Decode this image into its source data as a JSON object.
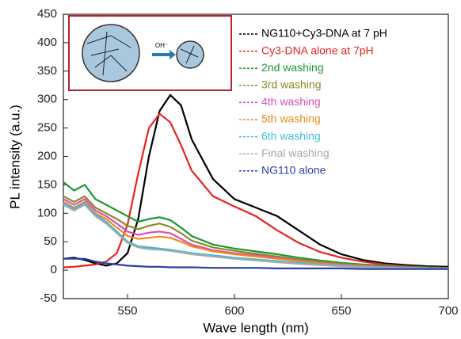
{
  "chart_data": {
    "type": "line",
    "xlabel": "Wave length (nm)",
    "ylabel": "PL intensity (a.u.)",
    "inset_label": "OH⁻",
    "xlim": [
      520,
      700
    ],
    "xticks": [
      550,
      600,
      650,
      700
    ],
    "ylim": [
      -50,
      450
    ],
    "yticks": [
      -50,
      0,
      50,
      100,
      150,
      200,
      250,
      300,
      350,
      400,
      450
    ],
    "x": [
      520,
      525,
      530,
      535,
      540,
      545,
      550,
      555,
      560,
      565,
      570,
      575,
      580,
      590,
      600,
      610,
      620,
      630,
      640,
      650,
      660,
      670,
      680,
      690,
      700
    ],
    "series": [
      {
        "name": "NG110+Cy3-DNA at 7 pH",
        "color": "#000000",
        "values": [
          20,
          22,
          18,
          12,
          8,
          12,
          30,
          90,
          200,
          280,
          308,
          290,
          230,
          160,
          125,
          110,
          95,
          70,
          45,
          28,
          18,
          12,
          9,
          7,
          6
        ]
      },
      {
        "name": "Cy3-DNA alone at 7pH",
        "color": "#e8231f",
        "values": [
          5,
          6,
          8,
          10,
          15,
          30,
          80,
          170,
          250,
          275,
          260,
          220,
          175,
          130,
          112,
          95,
          70,
          48,
          32,
          22,
          15,
          10,
          7,
          5,
          4
        ]
      },
      {
        "name": "2nd washing",
        "color": "#1a9a2e",
        "values": [
          155,
          140,
          150,
          125,
          115,
          105,
          95,
          85,
          90,
          93,
          88,
          75,
          60,
          45,
          38,
          33,
          28,
          22,
          17,
          13,
          10,
          8,
          6,
          5,
          4
        ]
      },
      {
        "name": "3rd washing",
        "color": "#8a8a25",
        "values": [
          130,
          120,
          130,
          110,
          100,
          90,
          78,
          72,
          78,
          82,
          76,
          65,
          52,
          40,
          34,
          29,
          24,
          19,
          15,
          11,
          9,
          7,
          5,
          4,
          3
        ]
      },
      {
        "name": "4th washing",
        "color": "#d94fb8",
        "values": [
          125,
          115,
          125,
          105,
          95,
          82,
          68,
          62,
          66,
          68,
          65,
          55,
          45,
          35,
          30,
          26,
          22,
          17,
          13,
          10,
          8,
          6,
          5,
          4,
          3
        ]
      },
      {
        "name": "5th washing",
        "color": "#f08a1c",
        "values": [
          120,
          110,
          120,
          100,
          90,
          75,
          60,
          55,
          57,
          59,
          57,
          50,
          42,
          33,
          28,
          24,
          20,
          16,
          12,
          9,
          7,
          5,
          4,
          3,
          3
        ]
      },
      {
        "name": "6th washing",
        "color": "#3dbbd8",
        "values": [
          118,
          108,
          118,
          98,
          85,
          68,
          50,
          42,
          40,
          38,
          36,
          33,
          30,
          26,
          22,
          19,
          16,
          13,
          10,
          8,
          6,
          5,
          4,
          3,
          2
        ]
      },
      {
        "name": "Final washing",
        "color": "#a8a8a8",
        "values": [
          115,
          105,
          115,
          95,
          82,
          65,
          48,
          40,
          37,
          36,
          34,
          31,
          28,
          24,
          20,
          17,
          14,
          11,
          9,
          7,
          5,
          4,
          3,
          2,
          2
        ]
      },
      {
        "name": "NG110 alone",
        "color": "#2b3fa8",
        "values": [
          20,
          20,
          20,
          15,
          12,
          10,
          8,
          7,
          6,
          6,
          5,
          5,
          5,
          4,
          4,
          4,
          3,
          3,
          3,
          3,
          2,
          2,
          2,
          2,
          2
        ]
      }
    ]
  }
}
